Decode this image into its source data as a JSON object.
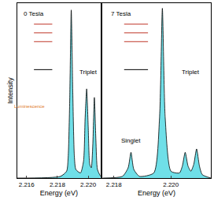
{
  "chart_data": [
    {
      "type": "area",
      "title": "0 Tesla",
      "x_label": "Energy (eV)",
      "y_label": "Intensity",
      "x": [
        2.2154,
        2.2182,
        2.2186,
        2.2187,
        2.2188,
        2.2189,
        2.219,
        2.2191,
        2.2192,
        2.2195,
        2.2197,
        2.2198,
        2.2199,
        2.22,
        2.2201,
        2.2202,
        2.2203,
        2.2204,
        2.2205,
        2.2206,
        2.2208
      ],
      "values": [
        0.0,
        0.01,
        0.04,
        0.12,
        0.45,
        0.98,
        0.5,
        0.13,
        0.05,
        0.03,
        0.1,
        0.35,
        0.52,
        0.3,
        0.08,
        0.06,
        0.2,
        0.47,
        0.22,
        0.05,
        0.01
      ],
      "color": "#6fdfe8",
      "xlim": [
        2.2154,
        2.2208
      ],
      "xticks": [
        2.216,
        2.218,
        {
          "value": 2.22,
          "label": "2.220"
        }
      ],
      "ylim": [
        0,
        1.02
      ],
      "tick_labels": "x",
      "grid": false,
      "annotations": [
        {
          "text": "Triplet",
          "x": 2.22,
          "y": 0.62
        },
        {
          "text": "Luminescence",
          "x": 2.2162,
          "y": 0.42,
          "color": "#e07a1f"
        }
      ]
    },
    {
      "type": "area",
      "title": "7 Tesla",
      "x_label": "Energy (eV)",
      "x": [
        2.2176,
        2.2183,
        2.2185,
        2.2186,
        2.2187,
        2.2189,
        2.2194,
        2.2196,
        2.2197,
        2.2198,
        2.22,
        2.2203,
        2.2204,
        2.2205,
        2.2206,
        2.2207,
        2.2208,
        2.2209,
        2.221,
        2.2211,
        2.2214
      ],
      "values": [
        0.0,
        0.01,
        0.06,
        0.15,
        0.05,
        0.01,
        0.03,
        0.35,
        0.99,
        0.35,
        0.04,
        0.03,
        0.07,
        0.15,
        0.07,
        0.04,
        0.08,
        0.17,
        0.07,
        0.02,
        0.0
      ],
      "color": "#6fdfe8",
      "xlim": [
        2.2176,
        2.2214
      ],
      "xticks": [
        2.218,
        {
          "value": 2.22,
          "label": "2.220"
        }
      ],
      "ylim": [
        0,
        1.02
      ],
      "tick_labels": "x",
      "grid": false,
      "annotations": [
        {
          "text": "Singlet",
          "x": 2.2186,
          "y": 0.22
        },
        {
          "text": "Triplet",
          "x": 2.2207,
          "y": 0.62
        }
      ]
    }
  ]
}
